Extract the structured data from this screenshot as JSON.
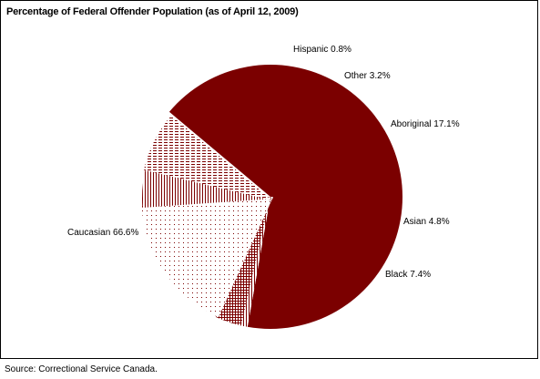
{
  "chart_data": {
    "type": "pie",
    "title": "Percentage of Federal Offender Population (as of April 12, 2009)",
    "slices": [
      {
        "name": "Caucasian",
        "value": 66.6,
        "label": "Caucasian 66.6%",
        "color": "#7b0000",
        "pattern": "solid"
      },
      {
        "name": "Hispanic",
        "value": 0.8,
        "label": "Hispanic 0.8%",
        "color": "#7b0000",
        "pattern": "vertical-lines"
      },
      {
        "name": "Other",
        "value": 3.2,
        "label": "Other 3.2%",
        "color": "#7b0000",
        "pattern": "crosshatch"
      },
      {
        "name": "Aboriginal",
        "value": 17.1,
        "label": "Aboriginal 17.1%",
        "color": "#7b0000",
        "pattern": "dots"
      },
      {
        "name": "Asian",
        "value": 4.8,
        "label": "Asian 4.8%",
        "color": "#7b0000",
        "pattern": "vertical-lines"
      },
      {
        "name": "Black",
        "value": 7.4,
        "label": "Black 7.4%",
        "color": "#7b0000",
        "pattern": "horizontal-dashes"
      }
    ]
  },
  "source": "Source:  Correctional Service Canada."
}
